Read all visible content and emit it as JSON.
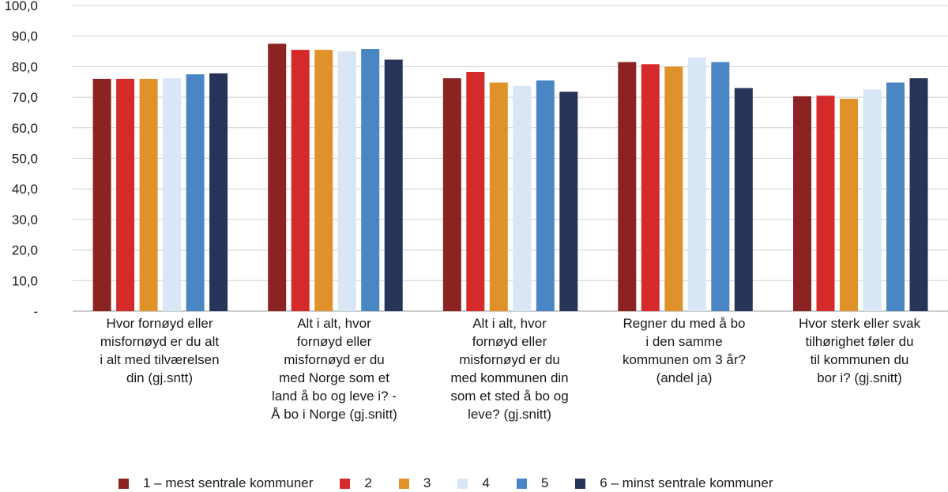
{
  "chart_data": {
    "type": "bar",
    "categories": [
      "Hvor fornøyd eller\nmisfornøyd er du alt\ni alt med tilværelsen\ndin (gj.sntt)",
      "Alt i alt, hvor\nfornøyd eller\nmisfornøyd er du\nmed Norge som et\nland å bo og leve i? -\nÅ bo i Norge (gj.snitt)",
      "Alt i alt, hvor\nfornøyd eller\nmisfornøyd er du\nmed kommunen din\nsom et sted å bo og\nleve? (gj.snitt)",
      "Regner du med å bo\ni den samme\nkommunen om 3 år?\n(andel ja)",
      "Hvor sterk eller svak\ntilhørighet føler du\ntil kommunen du\nbor i? (gj.snitt)"
    ],
    "series": [
      {
        "name": "1 – mest sentrale kommuner",
        "color": "#8b2323",
        "values": [
          76.0,
          87.5,
          76.2,
          81.5,
          70.3
        ]
      },
      {
        "name": "2",
        "color": "#d42a2a",
        "values": [
          76.0,
          85.5,
          78.3,
          80.8,
          70.5
        ]
      },
      {
        "name": "3",
        "color": "#e0922a",
        "values": [
          76.0,
          85.5,
          74.8,
          80.0,
          69.5
        ]
      },
      {
        "name": "4",
        "color": "#d8e6f5",
        "values": [
          76.2,
          85.0,
          73.7,
          83.0,
          72.5
        ]
      },
      {
        "name": "5",
        "color": "#4a86c4",
        "values": [
          77.5,
          85.8,
          75.5,
          81.5,
          74.8
        ]
      },
      {
        "name": "6 – minst sentrale kommuner",
        "color": "#253458",
        "values": [
          77.8,
          82.3,
          71.8,
          73.0,
          76.2
        ]
      }
    ],
    "yticks": [
      "-",
      "10,0",
      "20,0",
      "30,0",
      "40,0",
      "50,0",
      "60,0",
      "70,0",
      "80,0",
      "90,0",
      "100,0"
    ],
    "ylim": [
      0,
      100
    ],
    "grid": true,
    "legend_position": "bottom"
  }
}
